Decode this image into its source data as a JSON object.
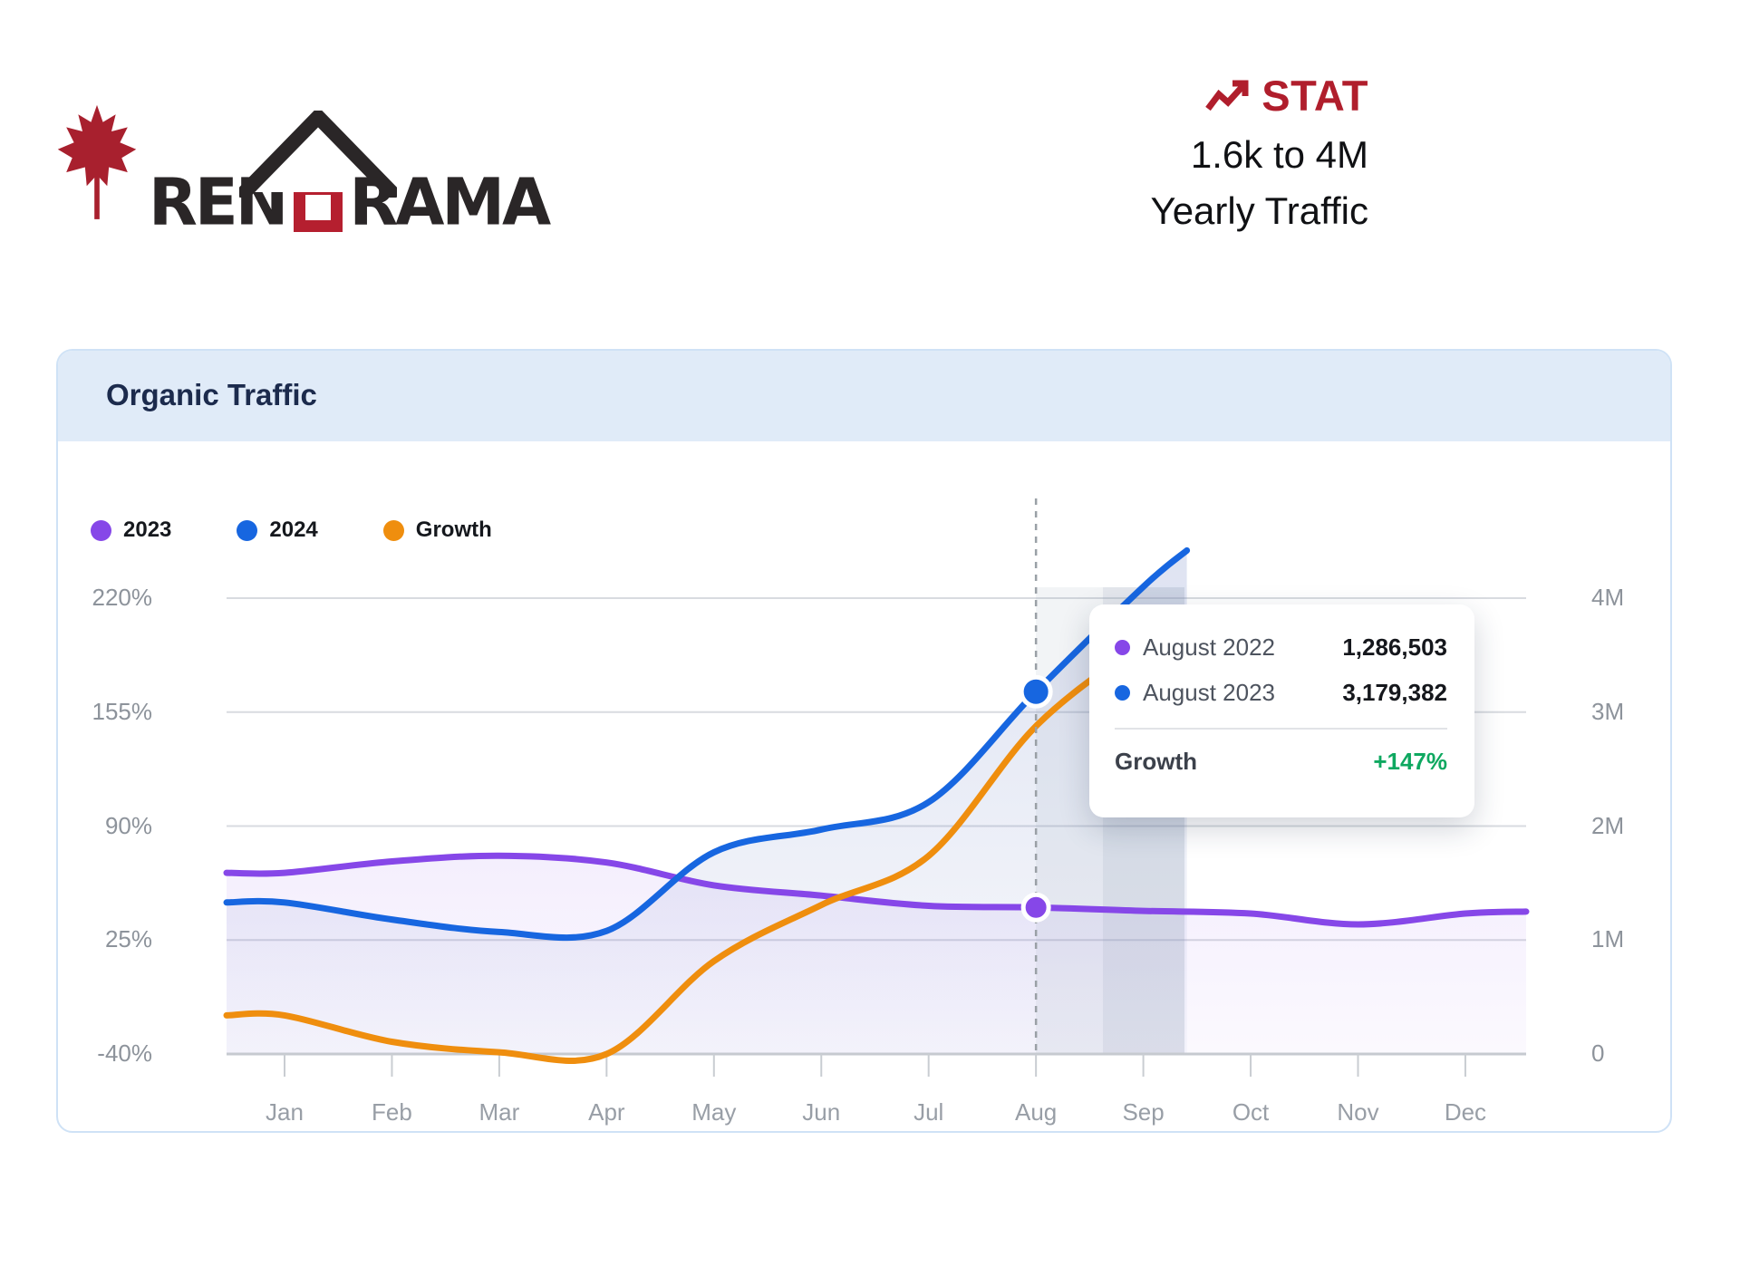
{
  "logo": {
    "brand_prefix": "REN",
    "brand_suffix": "RAMA",
    "leaf_color": "#a8202e",
    "text_color": "#2a2627",
    "house_color": "#b51f2f"
  },
  "stat": {
    "label": "STAT",
    "line1": "1.6k to 4M",
    "line2": "Yearly Traffic",
    "accent_color": "#b01e2c"
  },
  "card": {
    "title": "Organic Traffic",
    "header_bg": "#e0ebf8"
  },
  "legend": [
    {
      "label": "2023",
      "color": "#8647e8"
    },
    {
      "label": "2024",
      "color": "#1766e0"
    },
    {
      "label": "Growth",
      "color": "#ef8e0e"
    }
  ],
  "tooltip": {
    "rows": [
      {
        "label": "August 2022",
        "value": "1,286,503",
        "color": "#8647e8"
      },
      {
        "label": "August 2023",
        "value": "3,179,382",
        "color": "#1766e0"
      }
    ],
    "growth_label": "Growth",
    "growth_value": "+147%",
    "growth_color": "#0ea860"
  },
  "chart_data": {
    "type": "line",
    "title": "Organic Traffic",
    "x_labels": [
      "Jan",
      "Feb",
      "Mar",
      "Apr",
      "May",
      "Jun",
      "Jul",
      "Aug",
      "Sep",
      "Oct",
      "Nov",
      "Dec"
    ],
    "y_left": {
      "ticks": [
        "220%",
        "155%",
        "90%",
        "25%",
        "-40%"
      ],
      "min": -40,
      "max": 220,
      "unit": "%"
    },
    "y_right": {
      "ticks": [
        "4M",
        "3M",
        "2M",
        "1M",
        "0"
      ],
      "min": 0,
      "max": 4000000,
      "unit": "visits"
    },
    "grid": true,
    "legend_position": "top-left",
    "highlight_month": "Aug",
    "series": [
      {
        "name": "2023",
        "color": "#8647e8",
        "axis": "right",
        "fill": true,
        "values": [
          1590000,
          1690000,
          1740000,
          1680000,
          1480000,
          1390000,
          1300000,
          1286503,
          1256000,
          1233000,
          1137000,
          1233000
        ]
      },
      {
        "name": "2024",
        "color": "#1766e0",
        "axis": "right",
        "fill": true,
        "values": [
          1330000,
          1180000,
          1070000,
          1080000,
          1770000,
          1970000,
          2210000,
          3179382,
          4100000
        ]
      },
      {
        "name": "Growth",
        "color": "#ef8e0e",
        "axis": "left",
        "fill": false,
        "values": [
          -18,
          -33,
          -39,
          -40,
          13,
          45,
          73,
          147,
          195
        ]
      }
    ],
    "marked_points": [
      {
        "series": "2023",
        "month": "Aug",
        "value": 1286503
      },
      {
        "series": "2024",
        "month": "Aug",
        "value": 3179382
      }
    ]
  }
}
